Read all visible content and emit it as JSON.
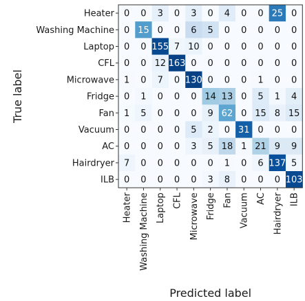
{
  "chart_data": {
    "type": "heatmap",
    "title": "",
    "xlabel": "Predicted label",
    "ylabel": "True label",
    "categories": [
      "Heater",
      "Washing Machine",
      "Laptop",
      "CFL",
      "Microwave",
      "Fridge",
      "Fan",
      "Vacuum",
      "AC",
      "Hairdryer",
      "ILB"
    ],
    "values": [
      [
        0,
        0,
        3,
        0,
        3,
        0,
        4,
        0,
        0,
        25,
        0
      ],
      [
        0,
        15,
        0,
        0,
        6,
        5,
        0,
        0,
        0,
        0,
        0
      ],
      [
        0,
        0,
        155,
        7,
        10,
        0,
        0,
        0,
        0,
        0,
        0
      ],
      [
        0,
        0,
        12,
        163,
        0,
        0,
        0,
        0,
        0,
        0,
        0
      ],
      [
        1,
        0,
        7,
        0,
        130,
        0,
        0,
        0,
        1,
        0,
        0
      ],
      [
        0,
        1,
        0,
        0,
        0,
        14,
        13,
        0,
        5,
        1,
        4
      ],
      [
        1,
        5,
        0,
        0,
        0,
        9,
        62,
        0,
        15,
        8,
        15
      ],
      [
        0,
        0,
        0,
        0,
        5,
        2,
        0,
        31,
        0,
        0,
        0
      ],
      [
        0,
        0,
        0,
        0,
        3,
        5,
        18,
        1,
        21,
        9,
        9
      ],
      [
        7,
        0,
        0,
        0,
        0,
        0,
        1,
        0,
        6,
        137,
        5
      ],
      [
        0,
        0,
        0,
        0,
        0,
        3,
        8,
        0,
        0,
        0,
        103
      ]
    ],
    "row_max_color": "#08306b",
    "text_dark_color": "#111111",
    "text_light_color": "#ffffff"
  }
}
